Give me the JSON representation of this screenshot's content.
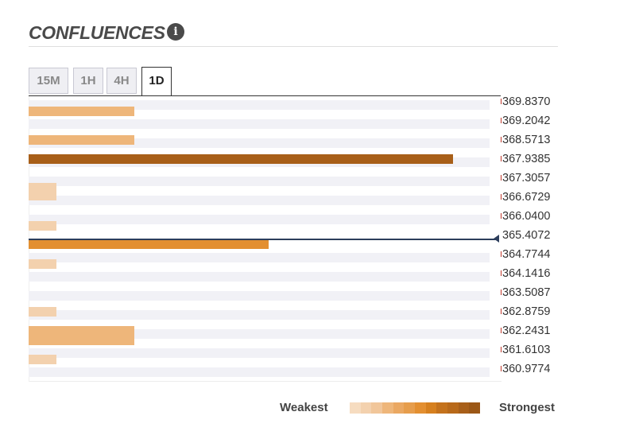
{
  "header": {
    "title": "CONFLUENCES",
    "info_icon": "info-icon"
  },
  "tabs": [
    {
      "label": "15M",
      "active": false
    },
    {
      "label": "1H",
      "active": false
    },
    {
      "label": "4H",
      "active": false
    },
    {
      "label": "1D",
      "active": true
    }
  ],
  "price_levels": [
    "369.8370",
    "369.2042",
    "368.5713",
    "367.9385",
    "367.3057",
    "366.6729",
    "366.0400",
    "365.4072",
    "364.7744",
    "364.1416",
    "363.5087",
    "362.8759",
    "362.2431",
    "361.6103",
    "360.9774"
  ],
  "current_price": "365.4072",
  "confluence_bars": [
    {
      "strength": 0.23,
      "color": "#eeb67a"
    },
    {
      "strength": 0.23,
      "color": "#eeb67a"
    },
    {
      "strength": 0.92,
      "color": "#a85f19"
    },
    {
      "strength": 0.06,
      "color": "#f3d1ae"
    },
    {
      "strength": 0.06,
      "color": "#f3d1ae"
    },
    {
      "strength": 0.52,
      "color": "#e38f31"
    },
    {
      "strength": 0.06,
      "color": "#f3d1ae"
    },
    {
      "strength": 0.06,
      "color": "#f3d1ae"
    },
    {
      "strength": 0.23,
      "color": "#eeb67a"
    },
    {
      "strength": 0.06,
      "color": "#f3d1ae"
    }
  ],
  "legend": {
    "weakest_label": "Weakest",
    "strongest_label": "Strongest",
    "scale_colors": [
      "#f6dcc0",
      "#f3d1ae",
      "#f1c69a",
      "#eeb67a",
      "#eaa862",
      "#e69d4c",
      "#e38f31",
      "#d6801f",
      "#c4721c",
      "#b8691a",
      "#a85f19",
      "#9b5716"
    ]
  }
}
